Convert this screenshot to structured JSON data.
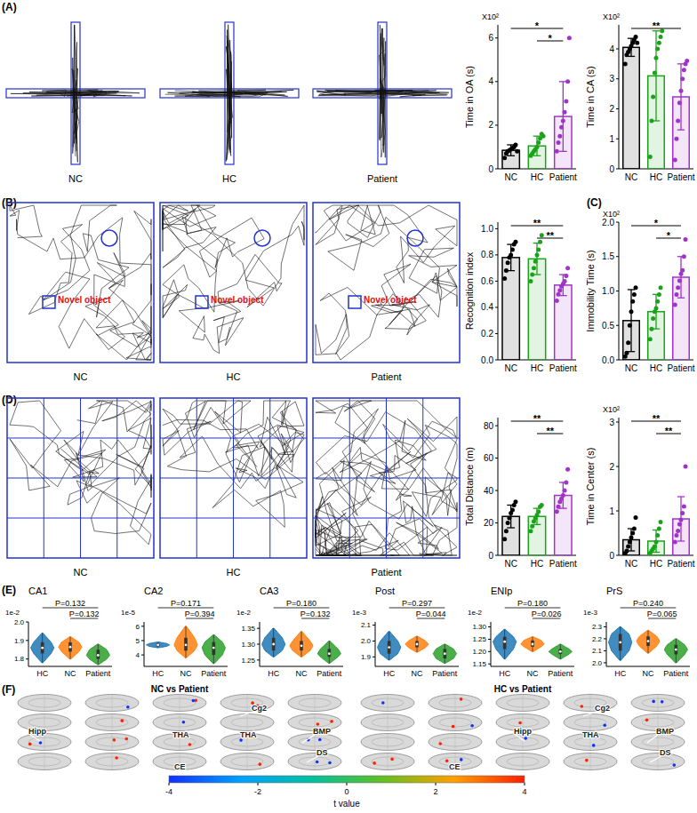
{
  "panel_labels": [
    "(A)",
    "(B)",
    "(C)",
    "(D)",
    "(E)",
    "(F)"
  ],
  "track_images": {
    "groups": [
      "NC",
      "HC",
      "Patient"
    ],
    "novel_object": "Novel object"
  },
  "chart_data": [
    {
      "type": "bar",
      "y_label": "Time in OA (s)",
      "scale_label": "X10²",
      "categories": [
        "NC",
        "HC",
        "Patient"
      ],
      "colors": [
        "#000000",
        "#1aa31a",
        "#a034c8"
      ],
      "values": [
        0.85,
        1.05,
        2.4
      ],
      "errors": [
        0.25,
        0.45,
        1.6
      ],
      "points": [
        [
          0.5,
          0.7,
          0.8,
          0.85,
          0.9,
          0.95,
          1.0,
          1.1,
          0.8
        ],
        [
          0.6,
          0.7,
          0.8,
          0.9,
          1.0,
          1.2,
          1.4,
          1.6,
          1.5
        ],
        [
          0.8,
          1.2,
          1.5,
          1.9,
          2.2,
          2.6,
          3.1,
          4.0,
          6.0
        ]
      ],
      "ylim": [
        0,
        6.6
      ],
      "yticks": [
        0,
        2,
        4,
        6
      ],
      "annotations": [
        {
          "between": [
            0,
            2
          ],
          "label": "*"
        },
        {
          "between": [
            1,
            2
          ],
          "label": "*"
        }
      ]
    },
    {
      "type": "bar",
      "y_label": "Time in CA (s)",
      "scale_label": "X10²",
      "categories": [
        "NC",
        "HC",
        "Patient"
      ],
      "colors": [
        "#000000",
        "#1aa31a",
        "#a034c8"
      ],
      "values": [
        4.05,
        3.1,
        2.4
      ],
      "errors": [
        0.3,
        1.5,
        1.1
      ],
      "points": [
        [
          3.5,
          3.8,
          3.9,
          4.0,
          4.1,
          4.2,
          4.3,
          4.4,
          4.2
        ],
        [
          0.4,
          1.6,
          2.4,
          3.2,
          3.7,
          4.0,
          4.2,
          4.4,
          4.6
        ],
        [
          0.3,
          1.0,
          1.6,
          2.2,
          2.6,
          3.0,
          3.3,
          3.5,
          3.6
        ]
      ],
      "ylim": [
        0,
        4.8
      ],
      "yticks": [
        0,
        1,
        2,
        3,
        4
      ],
      "annotations": [
        {
          "between": [
            0,
            2
          ],
          "label": "**"
        }
      ]
    },
    {
      "type": "bar",
      "y_label": "Recognition index",
      "categories": [
        "NC",
        "HC",
        "Patient"
      ],
      "colors": [
        "#000000",
        "#1aa31a",
        "#a034c8"
      ],
      "values": [
        0.78,
        0.77,
        0.57
      ],
      "errors": [
        0.1,
        0.12,
        0.08
      ],
      "points": [
        [
          0.62,
          0.68,
          0.74,
          0.78,
          0.8,
          0.84,
          0.88,
          0.9
        ],
        [
          0.6,
          0.65,
          0.7,
          0.75,
          0.8,
          0.84,
          0.9,
          0.95
        ],
        [
          0.45,
          0.5,
          0.53,
          0.56,
          0.58,
          0.6,
          0.64,
          0.7
        ]
      ],
      "ylim": [
        0,
        1.05
      ],
      "yticks": [
        {
          "value": 0,
          "label": "0.0"
        },
        0.2,
        0.4,
        0.6,
        0.8,
        {
          "value": 1,
          "label": "1.0"
        }
      ],
      "annotations": [
        {
          "between": [
            0,
            2
          ],
          "label": "**"
        },
        {
          "between": [
            1,
            2
          ],
          "label": "**"
        }
      ]
    },
    {
      "type": "bar",
      "y_label": "Immobility Time (s)",
      "scale_label": "X10²",
      "categories": [
        "NC",
        "HC",
        "Patient"
      ],
      "colors": [
        "#000000",
        "#1aa31a",
        "#a034c8"
      ],
      "values": [
        0.57,
        0.7,
        1.2
      ],
      "errors": [
        0.45,
        0.25,
        0.3
      ],
      "points": [
        [
          0.05,
          0.1,
          0.25,
          0.5,
          0.7,
          0.85,
          0.95,
          1.05
        ],
        [
          0.3,
          0.45,
          0.6,
          0.7,
          0.75,
          0.85,
          0.95,
          1.05
        ],
        [
          0.8,
          0.95,
          1.05,
          1.15,
          1.25,
          1.3,
          1.5,
          1.75
        ]
      ],
      "ylim": [
        0,
        2.0
      ],
      "yticks": [
        {
          "value": 0,
          "label": "0.0"
        },
        0.5,
        {
          "value": 1,
          "label": "1.0"
        },
        1.5,
        {
          "value": 2,
          "label": "2.0"
        }
      ],
      "annotations": [
        {
          "between": [
            0,
            2
          ],
          "label": "*"
        },
        {
          "between": [
            1,
            2
          ],
          "label": "*"
        }
      ]
    },
    {
      "type": "bar",
      "y_label": "Total Distance (m)",
      "categories": [
        "NC",
        "HC",
        "Patient"
      ],
      "colors": [
        "#000000",
        "#1aa31a",
        "#a034c8"
      ],
      "values": [
        24,
        24,
        37
      ],
      "errors": [
        7,
        5,
        8
      ],
      "points": [
        [
          10,
          15,
          20,
          23,
          26,
          28,
          31,
          33
        ],
        [
          15,
          18,
          21,
          23,
          25,
          27,
          30,
          31
        ],
        [
          27,
          30,
          33,
          35,
          37,
          40,
          45,
          53
        ]
      ],
      "ylim": [
        0,
        85
      ],
      "yticks": [
        0,
        20,
        40,
        60,
        80
      ],
      "annotations": [
        {
          "between": [
            0,
            2
          ],
          "label": "**"
        },
        {
          "between": [
            1,
            2
          ],
          "label": "**"
        }
      ]
    },
    {
      "type": "bar",
      "y_label": "Time in Center (s)",
      "scale_label": "X10²",
      "categories": [
        "NC",
        "HC",
        "Patient"
      ],
      "colors": [
        "#000000",
        "#1aa31a",
        "#a034c8"
      ],
      "values": [
        0.35,
        0.32,
        0.82
      ],
      "errors": [
        0.25,
        0.25,
        0.5
      ],
      "points": [
        [
          0.05,
          0.1,
          0.2,
          0.3,
          0.4,
          0.5,
          0.6,
          0.85
        ],
        [
          0.05,
          0.1,
          0.15,
          0.2,
          0.3,
          0.45,
          0.6,
          0.75
        ],
        [
          0.3,
          0.45,
          0.55,
          0.7,
          0.8,
          0.95,
          1.1,
          2.0
        ]
      ],
      "ylim": [
        0,
        3.1
      ],
      "yticks": [
        0,
        1,
        2,
        3
      ],
      "annotations": [
        {
          "between": [
            0,
            2
          ],
          "label": "**"
        },
        {
          "between": [
            1,
            2
          ],
          "label": "**"
        }
      ]
    },
    {
      "type": "violin",
      "title": "CA1",
      "scale_label": "1e-2",
      "categories": [
        "HC",
        "NC",
        "Patient"
      ],
      "colors": [
        "#1f77b4",
        "#ff7f0e",
        "#2ca02c"
      ],
      "stats": [
        [
          1.78,
          1.83,
          1.86,
          1.89,
          1.94
        ],
        [
          1.8,
          1.84,
          1.865,
          1.89,
          1.92
        ],
        [
          1.77,
          1.8,
          1.82,
          1.85,
          1.88
        ]
      ],
      "ylim": [
        1.76,
        2.0
      ],
      "yticks": [
        1.8,
        1.9,
        {
          "value": 2,
          "label": "2.0"
        }
      ],
      "annotations": [
        {
          "between": [
            0,
            2
          ],
          "label": "P=0.132"
        },
        {
          "between": [
            1,
            2
          ],
          "label": "P=0.132"
        }
      ]
    },
    {
      "type": "violin",
      "title": "CA2",
      "scale_label": "1e-5",
      "categories": [
        "HC",
        "NC",
        "Patient"
      ],
      "colors": [
        "#1f77b4",
        "#ff7f0e",
        "#2ca02c"
      ],
      "stats": [
        [
          4.5,
          4.6,
          4.7,
          4.8,
          4.9
        ],
        [
          3.8,
          4.3,
          4.7,
          5.2,
          6.0
        ],
        [
          3.4,
          4.0,
          4.5,
          4.9,
          5.4
        ]
      ],
      "ylim": [
        3.2,
        6.3
      ],
      "yticks": [
        4,
        5,
        6
      ],
      "annotations": [
        {
          "between": [
            0,
            2
          ],
          "label": "P=0.171"
        },
        {
          "between": [
            1,
            2
          ],
          "label": "P=0.394"
        }
      ]
    },
    {
      "type": "violin",
      "title": "CA3",
      "scale_label": "1e-2",
      "categories": [
        "HC",
        "NC",
        "Patient"
      ],
      "colors": [
        "#1f77b4",
        "#ff7f0e",
        "#2ca02c"
      ],
      "stats": [
        [
          1.26,
          1.28,
          1.3,
          1.32,
          1.35
        ],
        [
          1.26,
          1.28,
          1.295,
          1.31,
          1.34
        ],
        [
          1.24,
          1.26,
          1.27,
          1.285,
          1.31
        ]
      ],
      "ylim": [
        1.23,
        1.37
      ],
      "yticks": [
        1.25,
        {
          "value": 1.3,
          "label": "1.30"
        },
        1.35
      ],
      "annotations": [
        {
          "between": [
            0,
            2
          ],
          "label": "P=0.180"
        },
        {
          "between": [
            1,
            2
          ],
          "label": "P=0.132"
        }
      ]
    },
    {
      "type": "violin",
      "title": "Post",
      "scale_label": "1e-3",
      "categories": [
        "HC",
        "NC",
        "Patient"
      ],
      "colors": [
        "#1f77b4",
        "#ff7f0e",
        "#2ca02c"
      ],
      "stats": [
        [
          1.88,
          1.92,
          1.96,
          2.0,
          2.06
        ],
        [
          1.93,
          1.96,
          1.98,
          2.0,
          2.03
        ],
        [
          1.86,
          1.89,
          1.92,
          1.95,
          1.98
        ]
      ],
      "ylim": [
        1.84,
        2.12
      ],
      "yticks": [
        1.9,
        {
          "value": 2,
          "label": "2.0"
        },
        2.1
      ],
      "annotations": [
        {
          "between": [
            0,
            2
          ],
          "label": "P=0.297"
        },
        {
          "between": [
            1,
            2
          ],
          "label": "P=0.044"
        }
      ]
    },
    {
      "type": "violin",
      "title": "ENIp",
      "scale_label": "1e-2",
      "categories": [
        "HC",
        "NC",
        "Patient"
      ],
      "colors": [
        "#1f77b4",
        "#ff7f0e",
        "#2ca02c"
      ],
      "stats": [
        [
          1.17,
          1.21,
          1.24,
          1.26,
          1.29
        ],
        [
          1.2,
          1.22,
          1.23,
          1.245,
          1.26
        ],
        [
          1.17,
          1.19,
          1.2,
          1.21,
          1.23
        ]
      ],
      "ylim": [
        1.14,
        1.32
      ],
      "yticks": [
        1.15,
        {
          "value": 1.2,
          "label": "1.20"
        },
        1.25,
        {
          "value": 1.3,
          "label": "1.30"
        }
      ],
      "annotations": [
        {
          "between": [
            0,
            2
          ],
          "label": "P=0.180"
        },
        {
          "between": [
            1,
            2
          ],
          "label": "P=0.026"
        }
      ]
    },
    {
      "type": "violin",
      "title": "PrS",
      "scale_label": "1e-3",
      "categories": [
        "HC",
        "NC",
        "Patient"
      ],
      "colors": [
        "#1f77b4",
        "#ff7f0e",
        "#2ca02c"
      ],
      "stats": [
        [
          2.02,
          2.1,
          2.17,
          2.24,
          2.3
        ],
        [
          2.08,
          2.14,
          2.18,
          2.22,
          2.27
        ],
        [
          2.0,
          2.07,
          2.11,
          2.15,
          2.2
        ]
      ],
      "ylim": [
        1.97,
        2.34
      ],
      "yticks": [
        {
          "value": 2,
          "label": "2.0"
        },
        2.1,
        2.2,
        2.3
      ],
      "annotations": [
        {
          "between": [
            0,
            2
          ],
          "label": "P=0.240"
        },
        {
          "between": [
            1,
            2
          ],
          "label": "P=0.065"
        }
      ]
    }
  ],
  "brain_maps": {
    "titles": [
      "NC vs Patient",
      "HC vs Patient"
    ],
    "regions": [
      [
        "Cg2",
        "Hipp",
        "THA",
        "THA",
        "BMP",
        "DS",
        "CE"
      ],
      [
        "Cg2",
        "Hipp",
        "THA",
        "BMP",
        "DS",
        "CE"
      ]
    ],
    "colorbar": {
      "range": [
        -4,
        4
      ],
      "ticks": [
        -4,
        -2,
        0,
        2,
        4
      ],
      "title": "t value",
      "colors": [
        "#1030ff",
        "#00a0ff",
        "#00c0a0",
        "#60c020",
        "#ffa000",
        "#ff2000"
      ]
    }
  }
}
